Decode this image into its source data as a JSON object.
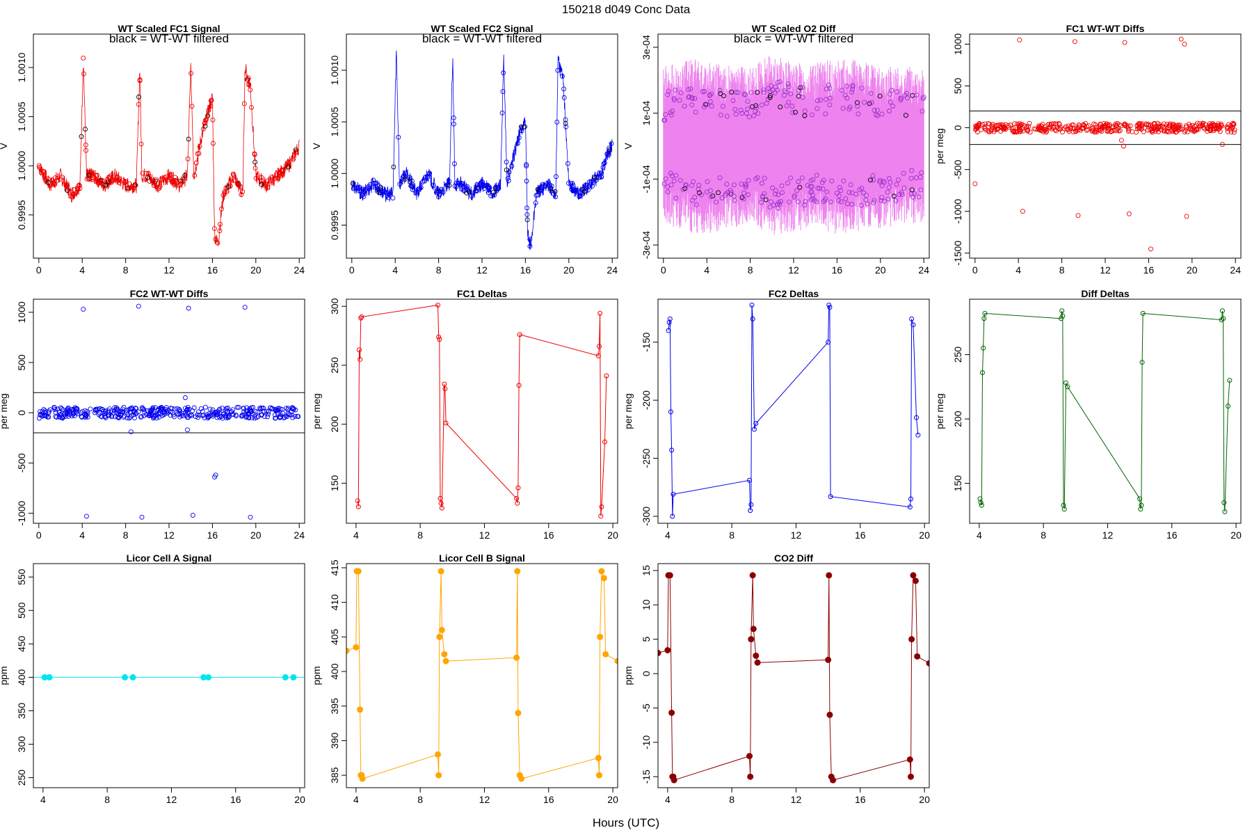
{
  "figure": {
    "title": "150218   d049   Conc Data",
    "xlabel": "Hours (UTC)"
  },
  "chart_data": [
    {
      "id": "p1",
      "type": "line",
      "title": "WT Scaled FC1 Signal",
      "note": "black = WT-WT filtered",
      "xlabel": "",
      "ylabel": "V",
      "color": "#ee0000",
      "markers": "open-circle",
      "xlim": [
        -0.5,
        24.5
      ],
      "ylim": [
        0.99906,
        1.00134
      ],
      "xticks": [
        "0",
        "4",
        "8",
        "12",
        "16",
        "20",
        "24"
      ],
      "yticks": [
        "0.9995",
        "1.0000",
        "1.0005",
        "1.0010"
      ],
      "x": [
        0,
        1,
        2,
        3,
        3.8,
        4.1,
        4.4,
        5,
        6,
        7,
        8,
        9,
        9.3,
        9.5,
        10,
        11,
        12,
        13,
        13.7,
        14,
        14.3,
        15,
        15.5,
        16,
        16.2,
        16.5,
        17,
        18,
        18.8,
        19,
        19.5,
        20,
        21,
        22,
        23,
        24
      ],
      "y": [
        1.0,
        0.9998,
        0.9999,
        0.9997,
        0.9998,
        1.0011,
        0.9999,
        0.9999,
        0.9998,
        0.9999,
        0.9998,
        0.9998,
        1.001,
        0.9999,
        0.9999,
        0.9998,
        0.9999,
        0.9998,
        0.9999,
        1.001,
        0.9999,
        1.0003,
        1.0005,
        1.0007,
        0.9993,
        0.9992,
        0.9997,
        0.9999,
        0.9997,
        1.001,
        1.0008,
        0.9999,
        0.9998,
        0.9999,
        1.0,
        1.0002
      ]
    },
    {
      "id": "p2",
      "type": "line",
      "title": "WT Scaled FC2 Signal",
      "note": "black = WT-WT filtered",
      "xlabel": "",
      "ylabel": "V",
      "color": "#0000ee",
      "markers": "open-circle",
      "xlim": [
        -0.5,
        24.5
      ],
      "ylim": [
        0.99918,
        1.00135
      ],
      "xticks": [
        "0",
        "4",
        "8",
        "12",
        "16",
        "20",
        "24"
      ],
      "yticks": [
        "0.9995",
        "1.0000",
        "1.0005",
        "1.0010"
      ],
      "x": [
        0,
        1,
        2,
        3,
        3.8,
        4.1,
        4.4,
        5,
        6,
        7,
        8,
        9,
        9.3,
        9.5,
        10,
        11,
        12,
        13,
        13.7,
        14,
        14.3,
        15,
        15.5,
        16,
        16.2,
        16.5,
        17,
        18,
        18.8,
        19,
        19.5,
        20,
        21,
        22,
        23,
        24
      ],
      "y": [
        0.9999,
        0.9998,
        0.9999,
        0.9998,
        0.9998,
        1.0012,
        0.9999,
        1.0,
        0.9998,
        1.0,
        0.9998,
        0.9999,
        1.0011,
        0.9999,
        0.9999,
        0.9998,
        0.9999,
        0.9998,
        0.9999,
        1.0011,
        0.9999,
        1.0002,
        1.0004,
        1.0005,
        0.9994,
        0.9993,
        0.9998,
        0.9999,
        0.9998,
        1.0011,
        1.0009,
        0.9999,
        0.9998,
        0.9999,
        1.0,
        1.0003
      ]
    },
    {
      "id": "p3",
      "type": "line",
      "title": "WT Scaled O2 Diff",
      "note": "black = WT-WT filtered",
      "xlabel": "",
      "ylabel": "V",
      "color": "#ee82ee",
      "point_color": "#9a32cd",
      "markers": "open-circle",
      "xlim": [
        -0.5,
        24.5
      ],
      "ylim": [
        -0.00034,
        0.00034
      ],
      "xticks": [
        "0",
        "4",
        "8",
        "12",
        "16",
        "20",
        "24"
      ],
      "yticks": [
        "-3e-04",
        "-1e-04",
        "1e-04",
        "3e-04"
      ],
      "x": [
        0,
        2,
        4,
        6,
        8,
        10,
        12,
        14,
        16,
        18,
        20,
        22,
        24
      ],
      "y_upper": [
        0.00012,
        0.00015,
        0.00014,
        0.00013,
        0.00012,
        0.00016,
        0.00014,
        0.00013,
        0.00015,
        0.00014,
        0.00012,
        0.00013,
        0.00011
      ],
      "y_lower": [
        -0.00012,
        -0.00014,
        -0.00015,
        -0.00013,
        -0.00012,
        -0.00015,
        -0.00014,
        -0.00013,
        -0.00015,
        -0.00014,
        -0.00013,
        -0.00012,
        -0.00011
      ]
    },
    {
      "id": "p4",
      "type": "scatter",
      "title": "FC1 WT-WT Diffs",
      "xlabel": "",
      "ylabel": "per meg",
      "color": "#ee0000",
      "xlim": [
        -0.5,
        24.5
      ],
      "ylim": [
        -1560,
        1120
      ],
      "xticks": [
        "0",
        "4",
        "8",
        "12",
        "16",
        "20",
        "24"
      ],
      "yticks": [
        "-1500",
        "-1000",
        "-500",
        "0",
        "500",
        "1000"
      ],
      "hlines": [
        200,
        -200
      ],
      "outliers_x": [
        0,
        4.1,
        4.4,
        9.2,
        9.5,
        13.8,
        14.2,
        16.2,
        19.0,
        19.3,
        19.5,
        13.5,
        13.7,
        22.8
      ],
      "outliers_y": [
        -670,
        1050,
        -1000,
        1030,
        -1050,
        1020,
        -1030,
        -1450,
        1060,
        1000,
        -1060,
        -150,
        -220,
        -200
      ]
    },
    {
      "id": "p5",
      "type": "scatter",
      "title": "FC2 WT-WT Diffs",
      "xlabel": "",
      "ylabel": "per meg",
      "color": "#0000ee",
      "xlim": [
        -0.5,
        24.5
      ],
      "ylim": [
        -1100,
        1130
      ],
      "xticks": [
        "0",
        "4",
        "8",
        "12",
        "16",
        "20",
        "24"
      ],
      "yticks": [
        "-1000",
        "-500",
        "0",
        "500",
        "1000"
      ],
      "hlines": [
        200,
        -200
      ],
      "outliers_x": [
        4.1,
        4.4,
        9.2,
        9.5,
        13.8,
        14.2,
        16.2,
        16.3,
        19.0,
        19.5,
        8.5,
        13.5,
        13.7
      ],
      "outliers_y": [
        1030,
        -1030,
        1060,
        -1040,
        1040,
        -1020,
        -640,
        -620,
        1050,
        -1040,
        -190,
        150,
        -170
      ]
    },
    {
      "id": "p6",
      "type": "line",
      "title": "FC1 Deltas",
      "xlabel": "",
      "ylabel": "per meg",
      "color": "#ee0000",
      "markers": "open-circle",
      "xlim": [
        3.4,
        20.3
      ],
      "ylim": [
        116,
        306
      ],
      "xticks": [
        "4",
        "8",
        "12",
        "16",
        "20"
      ],
      "yticks": [
        "150",
        "200",
        "250",
        "300"
      ],
      "x": [
        4.1,
        4.15,
        4.2,
        4.25,
        4.3,
        4.35,
        9.1,
        9.15,
        9.2,
        9.25,
        9.3,
        9.35,
        9.5,
        9.55,
        9.6,
        14.0,
        14.05,
        14.1,
        14.15,
        14.2,
        19.1,
        19.15,
        19.2,
        19.25,
        19.3,
        19.5,
        19.6
      ],
      "y": [
        135,
        130,
        263,
        255,
        290,
        291,
        301,
        274,
        272,
        137,
        133,
        129,
        234,
        230,
        201,
        137,
        133,
        146,
        233,
        276,
        258,
        266,
        294,
        122,
        130,
        185,
        241
      ]
    },
    {
      "id": "p7",
      "type": "line",
      "title": "FC2 Deltas",
      "xlabel": "",
      "ylabel": "per meg",
      "color": "#0000ee",
      "markers": "open-circle",
      "xlim": [
        3.4,
        20.3
      ],
      "ylim": [
        -306,
        -113
      ],
      "xticks": [
        "4",
        "8",
        "12",
        "16",
        "20"
      ],
      "yticks": [
        "-300",
        "-250",
        "-200",
        "-150"
      ],
      "x": [
        4.05,
        4.1,
        4.15,
        4.2,
        4.25,
        4.3,
        4.35,
        9.1,
        9.15,
        9.2,
        9.25,
        9.3,
        9.4,
        9.5,
        14.0,
        14.05,
        14.1,
        14.15,
        19.1,
        19.15,
        19.2,
        19.3,
        19.5,
        19.6
      ],
      "y": [
        -140,
        -133,
        -130,
        -210,
        -243,
        -300,
        -281,
        -269,
        -295,
        -290,
        -118,
        -130,
        -225,
        -220,
        -150,
        -118,
        -120,
        -283,
        -292,
        -285,
        -130,
        -135,
        -215,
        -230
      ]
    },
    {
      "id": "p8",
      "type": "line",
      "title": "Diff Deltas",
      "xlabel": "",
      "ylabel": "per meg",
      "color": "#006400",
      "markers": "open-circle",
      "xlim": [
        3.4,
        20.3
      ],
      "ylim": [
        119,
        293
      ],
      "xticks": [
        "4",
        "8",
        "12",
        "16",
        "20"
      ],
      "yticks": [
        "150",
        "200",
        "250"
      ],
      "x": [
        4.05,
        4.1,
        4.15,
        4.2,
        4.25,
        4.3,
        4.35,
        9.1,
        9.15,
        9.2,
        9.25,
        9.3,
        9.4,
        9.5,
        14.0,
        14.05,
        14.1,
        14.15,
        14.2,
        19.1,
        19.15,
        19.2,
        19.25,
        19.3,
        19.5,
        19.6
      ],
      "y": [
        138,
        135,
        133,
        236,
        255,
        278,
        282,
        278,
        284,
        280,
        133,
        130,
        228,
        225,
        138,
        130,
        133,
        244,
        282,
        277,
        284,
        278,
        135,
        128,
        210,
        230
      ]
    },
    {
      "id": "p9",
      "type": "line",
      "title": "Licor Cell A Signal",
      "xlabel": "",
      "ylabel": "ppm",
      "color": "#00e5ee",
      "markers": "filled-circle",
      "xlim": [
        3.4,
        20.3
      ],
      "ylim": [
        235,
        570
      ],
      "xticks": [
        "4",
        "8",
        "12",
        "16",
        "20"
      ],
      "yticks": [
        "250",
        "300",
        "350",
        "400",
        "450",
        "500",
        "550"
      ],
      "x": [
        3.4,
        4.1,
        4.4,
        9.1,
        9.6,
        14.0,
        14.3,
        19.1,
        19.6,
        20.3
      ],
      "y": [
        400,
        400,
        400,
        400,
        400,
        400,
        400,
        400,
        400,
        400
      ]
    },
    {
      "id": "p10",
      "type": "line",
      "title": "Licor Cell B Signal",
      "xlabel": "",
      "ylabel": "ppm",
      "color": "#ffa500",
      "markers": "filled-circle",
      "xlim": [
        3.4,
        20.3
      ],
      "ylim": [
        383.2,
        415.6
      ],
      "xticks": [
        "4",
        "8",
        "12",
        "16",
        "20"
      ],
      "yticks": [
        "385",
        "390",
        "395",
        "400",
        "405",
        "410",
        "415"
      ],
      "x": [
        3.4,
        4.0,
        4.05,
        4.15,
        4.25,
        4.3,
        4.35,
        4.4,
        9.1,
        9.15,
        9.2,
        9.3,
        9.35,
        9.5,
        9.6,
        14.0,
        14.05,
        14.1,
        14.2,
        14.3,
        19.1,
        19.15,
        19.2,
        19.3,
        19.45,
        19.55,
        20.3
      ],
      "y": [
        403,
        403.5,
        414.5,
        414.5,
        394.5,
        385,
        385,
        384.5,
        388,
        385,
        405,
        414.5,
        406,
        402.5,
        401.5,
        402,
        414.5,
        394,
        385,
        384.5,
        387.5,
        385,
        405,
        414.5,
        413.5,
        402.5,
        401.5
      ]
    },
    {
      "id": "p11",
      "type": "line",
      "title": "CO2 Diff",
      "xlabel": "",
      "ylabel": "ppm",
      "color": "#8b0000",
      "markers": "filled-circle",
      "xlim": [
        3.4,
        20.3
      ],
      "ylim": [
        -16.6,
        16.0
      ],
      "xticks": [
        "4",
        "8",
        "12",
        "16",
        "20"
      ],
      "yticks": [
        "-15",
        "-10",
        "-5",
        "0",
        "5",
        "10",
        "15"
      ],
      "x": [
        3.4,
        4.0,
        4.05,
        4.15,
        4.25,
        4.3,
        4.35,
        4.4,
        9.1,
        9.15,
        9.2,
        9.3,
        9.35,
        9.5,
        9.6,
        14.0,
        14.05,
        14.1,
        14.2,
        14.3,
        19.1,
        19.15,
        19.2,
        19.3,
        19.45,
        19.55,
        20.3
      ],
      "y": [
        3,
        3.4,
        14.3,
        14.3,
        -5.7,
        -15,
        -15,
        -15.5,
        -12,
        -15,
        5,
        14.3,
        6.5,
        2.6,
        1.6,
        2,
        14.3,
        -6,
        -15,
        -15.5,
        -12.5,
        -15,
        5,
        14.3,
        13.5,
        2.5,
        1.5
      ]
    }
  ]
}
